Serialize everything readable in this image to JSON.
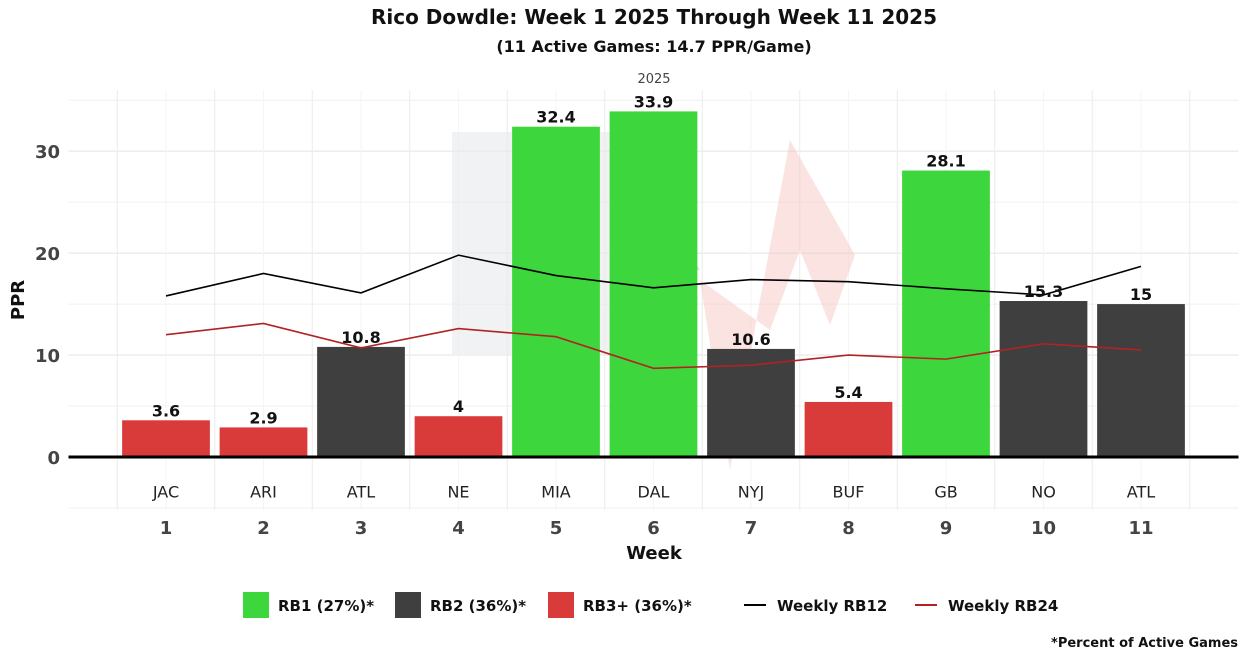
{
  "chart_data": {
    "type": "bar",
    "title": "Rico Dowdle: Week 1 2025 Through Week 11 2025",
    "subtitle": "(11 Active Games: 14.7 PPR/Game)",
    "strip_label": "2025",
    "xlabel": "Week",
    "ylabel": "PPR",
    "xlim": [
      0,
      12
    ],
    "ylim": [
      -5.2,
      36
    ],
    "yticks": [
      0,
      10,
      20,
      30
    ],
    "grid": true,
    "weeks": [
      1,
      2,
      3,
      4,
      5,
      6,
      7,
      8,
      9,
      10,
      11
    ],
    "week_labels": [
      "1",
      "2",
      "3",
      "4",
      "5",
      "6",
      "7",
      "8",
      "9",
      "10",
      "11"
    ],
    "opponents": [
      "JAC",
      "ARI",
      "ATL",
      "NE",
      "MIA",
      "DAL",
      "NYJ",
      "BUF",
      "GB",
      "NO",
      "ATL"
    ],
    "values": [
      3.6,
      2.9,
      10.8,
      4,
      32.4,
      33.9,
      10.6,
      5.4,
      28.1,
      15.3,
      15
    ],
    "tiers": [
      "RB3+",
      "RB3+",
      "RB2",
      "RB3+",
      "RB1",
      "RB1",
      "RB2",
      "RB3+",
      "RB1",
      "RB2",
      "RB2"
    ],
    "series": [
      {
        "name": "Weekly RB12",
        "color": "#000000",
        "values": [
          15.8,
          18.0,
          16.1,
          19.8,
          17.8,
          16.6,
          17.4,
          17.2,
          16.5,
          15.9,
          18.7
        ]
      },
      {
        "name": "Weekly RB24",
        "color": "#b22222",
        "values": [
          12.0,
          13.1,
          10.7,
          12.6,
          11.8,
          8.7,
          9.0,
          10.0,
          9.6,
          11.1,
          10.5
        ]
      }
    ],
    "tier_colors": {
      "RB1": "#3dd63d",
      "RB2": "#3f3f3f",
      "RB3+": "#d93b3b"
    },
    "legend": [
      {
        "key": "RB1",
        "label": "RB1 (27%)*"
      },
      {
        "key": "RB2",
        "label": "RB2 (36%)*"
      },
      {
        "key": "RB3+",
        "label": "RB3+ (36%)*"
      }
    ],
    "legend_lines": [
      "Weekly RB12",
      "Weekly RB24"
    ],
    "legend_placement": "bottom",
    "footnote": "*Percent of Active Games"
  }
}
